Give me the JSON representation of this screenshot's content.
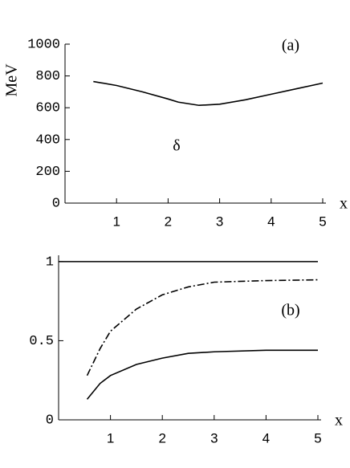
{
  "chart_data": [
    {
      "type": "line",
      "y_label": "MeV",
      "x_label": "x",
      "annotations": [
        "(a)",
        "δ"
      ],
      "xlim": [
        0,
        5
      ],
      "ylim": [
        0,
        1000
      ],
      "xticks": [
        1,
        2,
        3,
        4,
        5
      ],
      "yticks": [
        0,
        200,
        400,
        600,
        800,
        1000
      ],
      "series": [
        {
          "color": "#000000",
          "dash": "solid",
          "x": [
            0.55,
            1,
            1.5,
            2,
            2.2,
            2.6,
            3,
            3.5,
            4,
            4.5,
            5
          ],
          "values": [
            765,
            740,
            700,
            655,
            635,
            615,
            622,
            650,
            685,
            720,
            755
          ]
        }
      ]
    },
    {
      "type": "line",
      "x_label": "x",
      "annotations": [
        "(b)"
      ],
      "xlim": [
        0,
        5
      ],
      "ylim": [
        0,
        1.04
      ],
      "xticks": [
        1,
        2,
        3,
        4,
        5
      ],
      "yticks": [
        0,
        0.5,
        1
      ],
      "series": [
        {
          "color": "#000000",
          "dash": "solid",
          "x": [
            0,
            5
          ],
          "values": [
            1,
            1
          ]
        },
        {
          "color": "#000000",
          "dash": "dashdot",
          "x": [
            0.55,
            0.8,
            1,
            1.5,
            2,
            2.5,
            3,
            4,
            5
          ],
          "values": [
            0.28,
            0.45,
            0.56,
            0.7,
            0.79,
            0.84,
            0.87,
            0.88,
            0.885
          ]
        },
        {
          "color": "#000000",
          "dash": "solid",
          "x": [
            0.55,
            0.8,
            1,
            1.5,
            2,
            2.5,
            3,
            4,
            5
          ],
          "values": [
            0.13,
            0.23,
            0.28,
            0.35,
            0.39,
            0.42,
            0.43,
            0.44,
            0.44
          ]
        }
      ]
    }
  ]
}
